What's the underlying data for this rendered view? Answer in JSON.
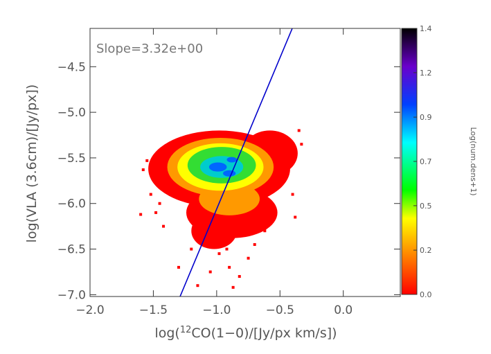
{
  "chart_data": {
    "type": "heatmap",
    "annotation": "Slope=3.32e+00",
    "xlabel_parts": {
      "pre": "log(",
      "sup": "12",
      "post": "CO(1−0)/[Jy/px km/s])"
    },
    "ylabel": "log(VLA  (3.6cm)/[Jy/px])",
    "xlim": [
      -2.0,
      0.45
    ],
    "ylim": [
      -7.02,
      -4.08
    ],
    "x_ticks": [
      {
        "value": -2.0,
        "label": "−2.0"
      },
      {
        "value": -1.5,
        "label": "−1.5"
      },
      {
        "value": -1.0,
        "label": "−1.0"
      },
      {
        "value": -0.5,
        "label": "−0.5"
      },
      {
        "value": 0.0,
        "label": "0.0"
      }
    ],
    "y_ticks": [
      {
        "value": -7.0,
        "label": "−7.0"
      },
      {
        "value": -6.5,
        "label": "−6.5"
      },
      {
        "value": -6.0,
        "label": "−6.0"
      },
      {
        "value": -5.5,
        "label": "−5.5"
      },
      {
        "value": -5.0,
        "label": "−5.0"
      },
      {
        "value": -4.5,
        "label": "−4.5"
      }
    ],
    "fit_line": {
      "slope": 3.32,
      "points": [
        [
          -1.289,
          -7.02
        ],
        [
          -0.403,
          -4.08
        ]
      ],
      "color": "#0000cc"
    },
    "density_levels": [
      {
        "level": 0.05,
        "color": "#ff0000",
        "blobs": [
          {
            "cx": -0.98,
            "cy": -5.62,
            "rx": 0.56,
            "ry": 0.42
          },
          {
            "cx": -0.88,
            "cy": -6.1,
            "rx": 0.36,
            "ry": 0.28
          },
          {
            "cx": -1.28,
            "cy": -5.6,
            "rx": 0.25,
            "ry": 0.25
          },
          {
            "cx": -0.58,
            "cy": -5.45,
            "rx": 0.22,
            "ry": 0.25
          },
          {
            "cx": -1.02,
            "cy": -6.3,
            "rx": 0.18,
            "ry": 0.2
          }
        ]
      },
      {
        "level": 0.2,
        "color": "#ff9900",
        "blobs": [
          {
            "cx": -0.97,
            "cy": -5.6,
            "rx": 0.42,
            "ry": 0.32
          },
          {
            "cx": -0.9,
            "cy": -5.95,
            "rx": 0.24,
            "ry": 0.18
          }
        ]
      },
      {
        "level": 0.4,
        "color": "#ffff00",
        "blobs": [
          {
            "cx": -0.97,
            "cy": -5.6,
            "rx": 0.34,
            "ry": 0.26
          }
        ]
      },
      {
        "level": 0.55,
        "color": "#33dd33",
        "blobs": [
          {
            "cx": -0.96,
            "cy": -5.58,
            "rx": 0.27,
            "ry": 0.2
          }
        ]
      },
      {
        "level": 0.8,
        "color": "#00cccc",
        "blobs": [
          {
            "cx": -0.96,
            "cy": -5.6,
            "rx": 0.17,
            "ry": 0.12
          }
        ]
      },
      {
        "level": 1.0,
        "color": "#0066ff",
        "blobs": [
          {
            "cx": -0.99,
            "cy": -5.6,
            "rx": 0.07,
            "ry": 0.05
          },
          {
            "cx": -0.9,
            "cy": -5.67,
            "rx": 0.05,
            "ry": 0.035
          },
          {
            "cx": -0.88,
            "cy": -5.52,
            "rx": 0.04,
            "ry": 0.03
          }
        ]
      }
    ],
    "scatter_points": [
      [
        -1.55,
        -5.53
      ],
      [
        -1.58,
        -5.63
      ],
      [
        -1.52,
        -5.9
      ],
      [
        -1.48,
        -6.1
      ],
      [
        -1.45,
        -6.0
      ],
      [
        -1.6,
        -6.12
      ],
      [
        -1.42,
        -6.25
      ],
      [
        -1.1,
        -6.45
      ],
      [
        -0.98,
        -6.55
      ],
      [
        -0.9,
        -6.7
      ],
      [
        -0.82,
        -6.8
      ],
      [
        -1.05,
        -6.75
      ],
      [
        -1.3,
        -6.7
      ],
      [
        -0.35,
        -5.2
      ],
      [
        -0.38,
        -6.15
      ],
      [
        -0.4,
        -5.9
      ],
      [
        -0.33,
        -5.35
      ],
      [
        -1.2,
        -6.5
      ],
      [
        -0.75,
        -6.6
      ],
      [
        -0.7,
        -6.45
      ],
      [
        -0.62,
        -6.3
      ],
      [
        -1.15,
        -6.9
      ],
      [
        -0.92,
        -6.5
      ],
      [
        -0.87,
        -6.92
      ],
      [
        -1.4,
        -5.4
      ]
    ],
    "colorbar": {
      "title": "Log(num.dens+1)",
      "range": [
        0.0,
        1.4
      ],
      "ticks": [
        {
          "value": 0.0,
          "label": "0.0"
        },
        {
          "value": 0.233,
          "label": "0.2"
        },
        {
          "value": 0.467,
          "label": "0.5"
        },
        {
          "value": 0.7,
          "label": "0.7"
        },
        {
          "value": 0.933,
          "label": "0.9"
        },
        {
          "value": 1.167,
          "label": "1.2"
        },
        {
          "value": 1.4,
          "label": "1.4"
        }
      ],
      "stops": [
        {
          "value": 0.0,
          "color": "#ff0000"
        },
        {
          "value": 0.2,
          "color": "#ff8000"
        },
        {
          "value": 0.4,
          "color": "#ffff00"
        },
        {
          "value": 0.55,
          "color": "#00ff00"
        },
        {
          "value": 0.8,
          "color": "#00ffff"
        },
        {
          "value": 1.0,
          "color": "#0040ff"
        },
        {
          "value": 1.2,
          "color": "#6a00cc"
        },
        {
          "value": 1.4,
          "color": "#000000"
        }
      ]
    }
  }
}
